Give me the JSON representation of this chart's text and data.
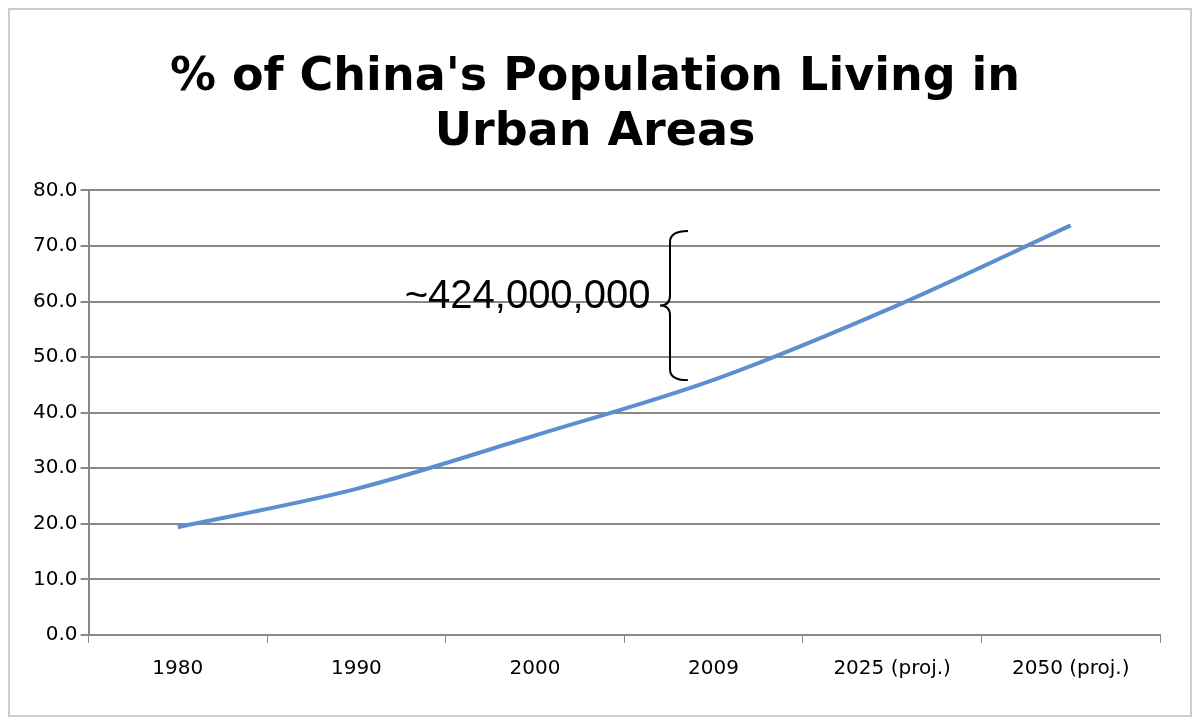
{
  "chart_data": {
    "type": "line",
    "title": "% of China's Population Living in Urban Areas",
    "categories": [
      "1980",
      "1990",
      "2000",
      "2009",
      "2025 (proj.)",
      "2050 (proj.)"
    ],
    "series": [
      {
        "color": "#5b8fd0",
        "values": [
          19.4,
          26.3,
          35.9,
          45.9,
          58.9,
          73.7
        ]
      }
    ],
    "ylim": [
      0,
      80
    ],
    "yticks": [
      {
        "value": 0,
        "label": "0.0"
      },
      {
        "value": 10,
        "label": "10.0"
      },
      {
        "value": 20,
        "label": "20.0"
      },
      {
        "value": 30,
        "label": "30.0"
      },
      {
        "value": 40,
        "label": "40.0"
      },
      {
        "value": 50,
        "label": "50.0"
      },
      {
        "value": 60,
        "label": "60.0"
      },
      {
        "value": 70,
        "label": "70.0"
      },
      {
        "value": 80,
        "label": "80.0"
      }
    ],
    "annotations": [
      "~424,000,000"
    ],
    "grid": "y",
    "legend": false,
    "marker": "none",
    "line_style": "solid"
  }
}
